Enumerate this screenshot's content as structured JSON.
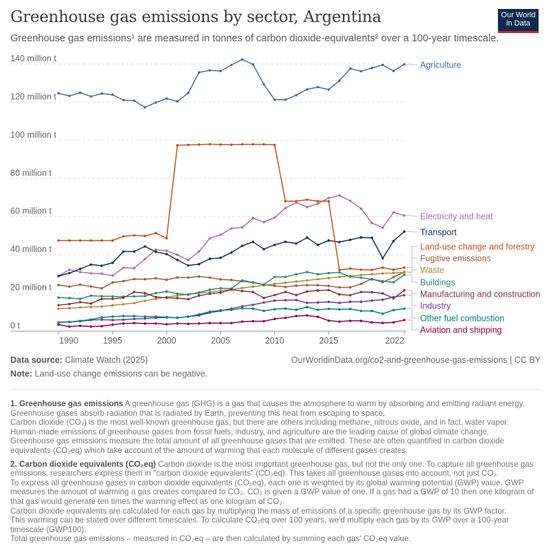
{
  "header": {
    "title": "Greenhouse gas emissions by sector, Argentina",
    "subtitle": "Greenhouse gas emissions¹ are measured in tonnes of carbon dioxide-equivalents² over a 100-year timescale.",
    "logo": "Our World in Data"
  },
  "chart_data": {
    "type": "line",
    "title": "Greenhouse gas emissions by sector, Argentina",
    "xlabel": "",
    "ylabel": "",
    "x": [
      1990,
      1991,
      1992,
      1993,
      1994,
      1995,
      1996,
      1997,
      1998,
      1999,
      2000,
      2001,
      2002,
      2003,
      2004,
      2005,
      2006,
      2007,
      2008,
      2009,
      2010,
      2011,
      2012,
      2013,
      2014,
      2015,
      2016,
      2017,
      2018,
      2019,
      2020,
      2021,
      2022
    ],
    "xticks": [
      "1990",
      "1995",
      "2000",
      "2005",
      "2010",
      "2015",
      "2022"
    ],
    "yticks": [
      "0 t",
      "20 million t",
      "40 million t",
      "60 million t",
      "80 million t",
      "100 million t",
      "120 million t",
      "140 million t"
    ],
    "ylim": [
      0,
      140
    ],
    "grid": "horizontal dashed",
    "legend": "right, labels at line ends",
    "unit": "million t CO2eq",
    "series": [
      {
        "name": "Agriculture",
        "color": "#4c6a9c",
        "values": [
          124.6,
          123.3,
          125,
          123,
          124.5,
          123.9,
          121.1,
          120.8,
          117.3,
          119.8,
          121.9,
          120.4,
          124.8,
          135.6,
          136.7,
          136.3,
          139.5,
          142.4,
          139.8,
          129.3,
          121.3,
          121.3,
          123.7,
          126.7,
          127.9,
          126.6,
          131.3,
          137.6,
          136.2,
          137.9,
          139.5,
          136.4,
          139.9
        ]
      },
      {
        "name": "Electricity and heat",
        "color": "#b06ca9",
        "values": [
          28.9,
          32.2,
          31,
          30.3,
          30.1,
          29.1,
          33.2,
          33,
          37.8,
          42.7,
          42.1,
          40,
          37.2,
          41.7,
          48.6,
          50.5,
          53.8,
          54.4,
          59.2,
          57.1,
          59.5,
          64.5,
          67.4,
          65,
          66.8,
          69.8,
          71.1,
          68.3,
          64.2,
          56.7,
          54.2,
          62.2,
          60.6
        ]
      },
      {
        "name": "Transport",
        "color": "#18324e",
        "values": [
          28.9,
          30.4,
          32.6,
          34.9,
          34.3,
          35.8,
          41.7,
          41.7,
          44.4,
          41.6,
          40.4,
          37.3,
          34.4,
          35.1,
          37.9,
          38.4,
          41.2,
          44.7,
          46.8,
          43,
          45.2,
          46.8,
          45.9,
          49,
          45.2,
          47.5,
          46.7,
          47.9,
          49.1,
          48.9,
          38.2,
          47.2,
          52.2
        ]
      },
      {
        "name": "Land-use change and forestry",
        "color": "#c4501e",
        "values": [
          47.5,
          47.5,
          47.5,
          47.5,
          47.5,
          47.5,
          49.7,
          50.2,
          49.9,
          51.4,
          48.7,
          97.4,
          97.6,
          97.8,
          98,
          97.8,
          97.7,
          97.9,
          97.9,
          97.9,
          97.6,
          68.1,
          68.1,
          68.9,
          68.1,
          68.1,
          32.1,
          32.8,
          32.2,
          32.1,
          33.3,
          32.2,
          33.3
        ]
      },
      {
        "name": "Fugitive emissions",
        "color": "#9a5f3a",
        "values": [
          24.2,
          23.3,
          24.4,
          23.4,
          22.4,
          25.5,
          26.2,
          27.3,
          27.2,
          27.7,
          26.9,
          28.1,
          28.1,
          28.6,
          28.1,
          27.1,
          26.8,
          26.2,
          25.4,
          24.4,
          23.7,
          23.2,
          23.8,
          24.1,
          24.1,
          23.7,
          22.9,
          22.9,
          24.8,
          27.4,
          25.6,
          28.3,
          31
        ]
      },
      {
        "name": "Waste",
        "color": "#b08a3e",
        "values": [
          11.8,
          12,
          12.4,
          12.7,
          12.9,
          13.5,
          14.1,
          14.7,
          15.9,
          16.9,
          17.8,
          18.6,
          19.3,
          19.9,
          20.5,
          21.1,
          21.9,
          22.6,
          23.3,
          24,
          24.7,
          25.4,
          26,
          26.6,
          27.2,
          27.8,
          28.4,
          28.9,
          29.4,
          29.8,
          30.2,
          30.5,
          30.8
        ]
      },
      {
        "name": "Buildings",
        "color": "#2e8b6b",
        "values": [
          17.6,
          17.3,
          16.9,
          18.6,
          18.3,
          18.2,
          18.1,
          18.2,
          18.4,
          19.9,
          20.8,
          19.6,
          19.1,
          20.2,
          21.7,
          22.5,
          22.3,
          26.6,
          25.6,
          24.4,
          28.4,
          28.4,
          29.8,
          31,
          29.8,
          30.4,
          30.8,
          28.5,
          28,
          27.1,
          26.2,
          25.6,
          29.5
        ]
      },
      {
        "name": "Manufacturing and construction",
        "color": "#8a2f3c",
        "values": [
          13.6,
          14.2,
          15.2,
          14.5,
          16.9,
          16.9,
          17.5,
          20.5,
          19.9,
          17.9,
          17.5,
          17.3,
          16.7,
          18.6,
          19.6,
          20.2,
          21.8,
          21,
          20.5,
          17.4,
          18.9,
          20.5,
          18.9,
          20.8,
          21.3,
          21.5,
          19.2,
          18.8,
          20.5,
          20.4,
          19.8,
          17.2,
          21.4
        ]
      },
      {
        "name": "Industry",
        "color": "#6d3e91",
        "values": [
          4.6,
          4.8,
          5.2,
          5.8,
          6,
          5.8,
          6,
          6.4,
          6.6,
          7,
          7.2,
          7,
          7.6,
          8.2,
          9.7,
          10.6,
          11.8,
          13,
          13.8,
          15,
          16,
          16.2,
          16.3,
          14.8,
          15,
          15.3,
          14.8,
          15.4,
          15.4,
          16,
          16.5,
          17.8,
          18.8
        ]
      },
      {
        "name": "Other fuel combustion",
        "color": "#00847e",
        "values": [
          4.6,
          4.8,
          5.4,
          6.1,
          7.2,
          7.6,
          7.9,
          7.9,
          7.6,
          7.6,
          7.3,
          7,
          7.6,
          8.8,
          10.2,
          10.9,
          11.2,
          12,
          11.8,
          10.6,
          11.5,
          11.8,
          11.2,
          12.6,
          11.2,
          11.7,
          11.4,
          11.6,
          10.6,
          10.6,
          9.1,
          11,
          11.8
        ]
      },
      {
        "name": "Aviation and shipping",
        "color": "#970046",
        "values": [
          3.4,
          2.4,
          2.8,
          2.4,
          2.6,
          3.4,
          4,
          4.2,
          4,
          4,
          3.6,
          4,
          3.8,
          4,
          4.2,
          4.2,
          4.2,
          5,
          5.2,
          5.2,
          6.4,
          7,
          7.9,
          8.2,
          7.5,
          5.5,
          5,
          5.4,
          5.4,
          4.6,
          4.3,
          4.6,
          5.8
        ]
      }
    ]
  },
  "footer": {
    "source_label": "Data source:",
    "source": "Climate Watch (2025)",
    "url": "OurWorldinData.org/co2-and-greenhouse-gas-emissions | CC BY",
    "note_label": "Note:",
    "note": "Land-use change emissions can be negative."
  },
  "footnotes": [
    {
      "heading": "1. Greenhouse gas emissions",
      "lines": [
        "A greenhouse gas (GHG) is a gas that causes the atmosphere to warm by absorbing and emitting radiant energy. Greenhouse gases absorb radiation that is radiated by Earth, preventing this heat from escaping to space.",
        "Carbon dioxide (CO₂) is the most well-known greenhouse gas, but there are others including methane, nitrous oxide, and in fact, water vapor.",
        "Human-made emissions of greenhouse gases from fossil fuels, industry, and agriculture are the leading cause of global climate change.",
        "Greenhouse gas emissions measure the total amount of all greenhouse gases that are emitted. These are often quantified in carbon dioxide equivalents (CO₂eq) which take account of the amount of warming that each molecule of different gases creates."
      ]
    },
    {
      "heading": "2. Carbon dioxide equivalents (CO₂eq)",
      "lines": [
        "Carbon dioxide is the most important greenhouse gas, but not the only one. To capture all greenhouse gas emissions, researchers express them in \"carbon dioxide equivalents\" (CO₂eq). This takes all greenhouse gases into account, not just CO₂.",
        "To express all greenhouse gases in carbon dioxide equivalents (CO₂eq), each one is weighted by its global warming potential (GWP) value. GWP measures the amount of warming a gas creates compared to CO₂. CO₂ is given a GWP value of one. If a gas had a GWP of 10 then one kilogram of that gas would generate ten times the warming effect as one kilogram of CO₂.",
        "Carbon dioxide equivalents are calculated for each gas by multiplying the mass of emissions of a specific greenhouse gas by its GWP factor.",
        "This warming can be stated over different timescales. To calculate CO₂eq over 100 years, we'd multiply each gas by its GWP over a 100-year timescale (GWP100).",
        "Total greenhouse gas emissions – measured in CO₂eq – are then calculated by summing each gas' CO₂eq value."
      ]
    }
  ]
}
